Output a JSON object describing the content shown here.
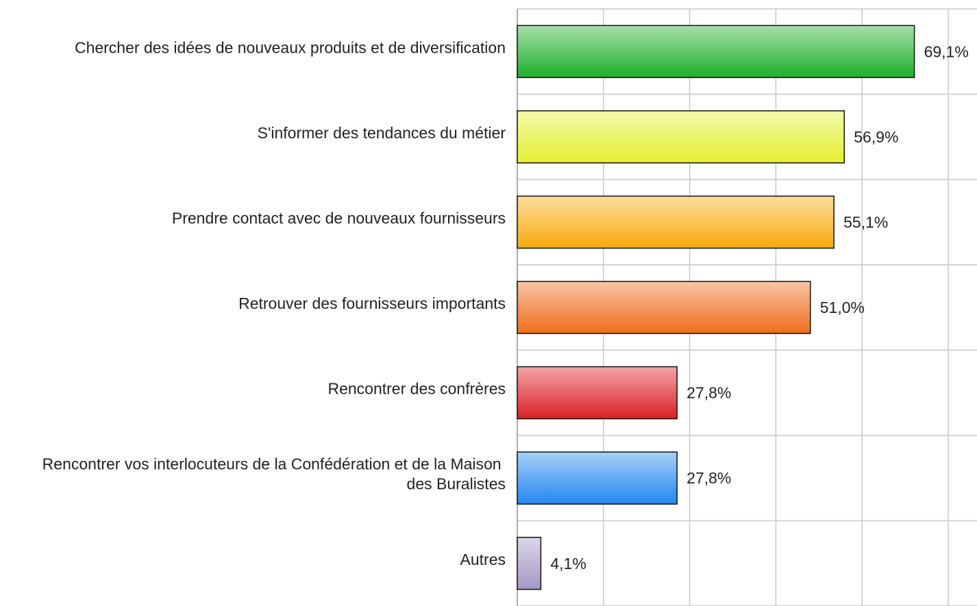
{
  "chart_data": {
    "type": "bar",
    "orientation": "horizontal",
    "categories": [
      "Chercher des idées de nouveaux produits et de diversification",
      "S'informer des tendances du métier",
      "Prendre contact avec de nouveaux fournisseurs",
      "Retrouver des fournisseurs importants",
      "Rencontrer des confrères",
      "Rencontrer vos interlocuteurs de la Confédération et de la Maison des Buralistes",
      "Autres"
    ],
    "values": [
      69.1,
      56.9,
      55.1,
      51.0,
      27.8,
      27.8,
      4.1
    ],
    "value_labels": [
      "69,1%",
      "56,9%",
      "55,1%",
      "51,0%",
      "27,8%",
      "27,8%",
      "4,1%"
    ],
    "colors": [
      "#1fae2a",
      "#e4ef30",
      "#f7aa0c",
      "#f06c1c",
      "#dc1f26",
      "#2288f0",
      "#a698c6"
    ],
    "xlim": [
      0,
      80
    ],
    "xticks": [
      0,
      15,
      30,
      45,
      60,
      75
    ],
    "grid": true
  }
}
